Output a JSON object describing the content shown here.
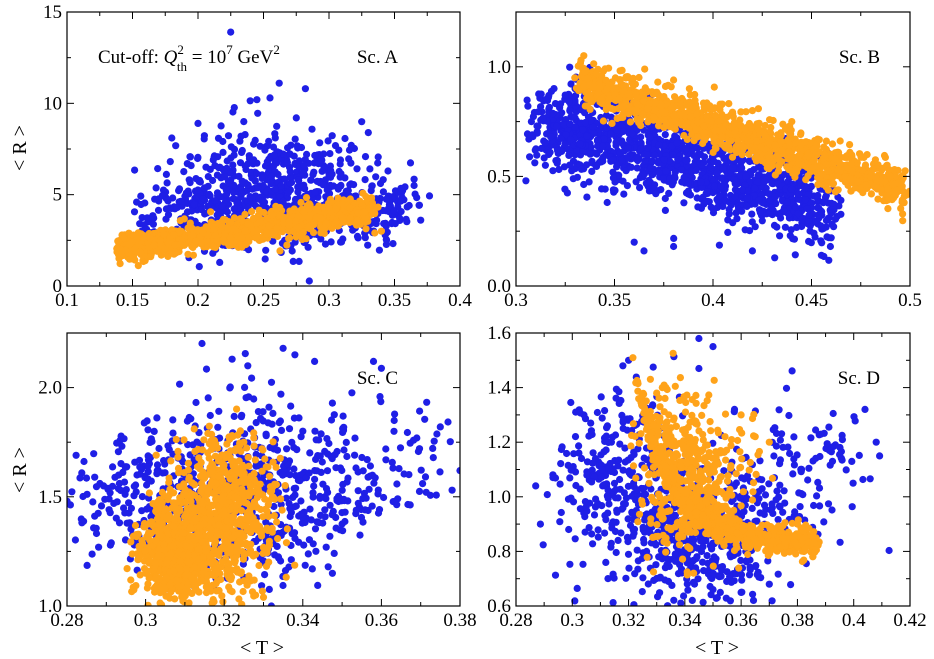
{
  "figure": {
    "y_axis_title": "< R >",
    "x_axis_title": "< T >"
  },
  "colors": {
    "series_a": "#1f1fe6",
    "series_b": "#ffa31a",
    "axis": "#000000"
  },
  "chart_data": [
    {
      "type": "scatter",
      "panel": "Sc. A",
      "annotation": "Sc. A",
      "cutoff_label": {
        "prefix": "Cut-off: ",
        "q": "Q",
        "q_sup": "2",
        "q_sub": "th",
        "eq": " = 10",
        "exp": "7",
        "unit": " GeV",
        "unit_sup": "2"
      },
      "xlim": [
        0.1,
        0.4
      ],
      "ylim": [
        0,
        15
      ],
      "xticks": [
        "0.1",
        "0.15",
        "0.2",
        "0.25",
        "0.3",
        "0.35",
        "0.4"
      ],
      "yticks": [
        "0",
        "5",
        "10",
        "15"
      ],
      "xlabel": "",
      "ylabel": "< R >",
      "series": [
        {
          "name": "blue",
          "color": "#1f1fe6",
          "cloud": [
            [
              0.16,
              3.0,
              0.006,
              0.5
            ],
            [
              0.2,
              4.2,
              0.02,
              1.1
            ],
            [
              0.23,
              5.2,
              0.025,
              1.6
            ],
            [
              0.26,
              5.0,
              0.03,
              1.7
            ],
            [
              0.29,
              5.2,
              0.025,
              1.5
            ],
            [
              0.32,
              4.6,
              0.02,
              1.2
            ],
            [
              0.35,
              4.2,
              0.012,
              0.8
            ]
          ],
          "cloud_counts": [
            30,
            130,
            190,
            200,
            170,
            110,
            45
          ],
          "points": [
            [
              0.225,
              13.9
            ],
            [
              0.255,
              10.3
            ],
            [
              0.262,
              11.1
            ],
            [
              0.282,
              10.8
            ],
            [
              0.245,
              10.2
            ],
            [
              0.2,
              8.9
            ],
            [
              0.18,
              8.1
            ],
            [
              0.275,
              9.2
            ],
            [
              0.235,
              9.0
            ],
            [
              0.33,
              8.4
            ],
            [
              0.365,
              5.5
            ],
            [
              0.37,
              3.6
            ]
          ]
        },
        {
          "name": "orange",
          "color": "#ffa31a",
          "band": {
            "x0": 0.14,
            "x1": 0.335,
            "y_at_x0": 2.0,
            "slope": 11.5,
            "spread_x": 0.002,
            "spread_y": 0.38,
            "count": 1100
          },
          "points": [
            [
              0.138,
              2.05
            ],
            [
              0.145,
              1.95
            ],
            [
              0.285,
              4.5
            ],
            [
              0.3,
              4.3
            ],
            [
              0.335,
              2.9
            ],
            [
              0.34,
              3.0
            ]
          ]
        }
      ]
    },
    {
      "type": "scatter",
      "panel": "Sc. B",
      "annotation": "Sc. B",
      "xlim": [
        0.3,
        0.5
      ],
      "ylim": [
        0.0,
        1.25
      ],
      "xticks": [
        "0.3",
        "0.35",
        "0.4",
        "0.45",
        "0.5"
      ],
      "yticks": [
        "0.0",
        "0.5",
        "1.0"
      ],
      "xlabel": "",
      "ylabel": "",
      "series": [
        {
          "name": "blue",
          "color": "#1f1fe6",
          "band": {
            "x0": 0.31,
            "x1": 0.46,
            "y_at_x0": 0.75,
            "slope": -2.5,
            "spread_x": 0.004,
            "spread_y": 0.1,
            "count": 1300
          },
          "points": [
            [
              0.305,
              0.48
            ],
            [
              0.33,
              0.9
            ],
            [
              0.34,
              0.95
            ],
            [
              0.36,
              0.2
            ],
            [
              0.365,
              0.16
            ],
            [
              0.38,
              0.18
            ],
            [
              0.42,
              0.16
            ],
            [
              0.455,
              0.14
            ],
            [
              0.46,
              0.22
            ],
            [
              0.43,
              0.6
            ]
          ]
        },
        {
          "name": "orange",
          "color": "#ffa31a",
          "band": {
            "x0": 0.333,
            "x1": 0.497,
            "y_at_x0": 0.93,
            "slope": -3.0,
            "spread_x": 0.002,
            "spread_y": 0.05,
            "count": 1300
          },
          "points": [
            [
              0.333,
              1.03
            ],
            [
              0.372,
              0.93
            ],
            [
              0.38,
              0.94
            ],
            [
              0.388,
              0.9
            ],
            [
              0.42,
              0.8
            ],
            [
              0.44,
              0.75
            ],
            [
              0.48,
              0.5
            ],
            [
              0.497,
              0.38
            ]
          ]
        }
      ]
    },
    {
      "type": "scatter",
      "panel": "Sc. C",
      "annotation": "Sc. C",
      "xlim": [
        0.28,
        0.38
      ],
      "ylim": [
        1.0,
        2.25
      ],
      "xticks": [
        "0.28",
        "0.3",
        "0.32",
        "0.34",
        "0.36",
        "0.38"
      ],
      "yticks": [
        "1.0",
        "1.5",
        "2.0"
      ],
      "xlabel": "< T >",
      "ylabel": "< R >",
      "series": [
        {
          "name": "blue",
          "color": "#1f1fe6",
          "cloud": [
            [
              0.29,
              1.5,
              0.006,
              0.12
            ],
            [
              0.305,
              1.45,
              0.007,
              0.18
            ],
            [
              0.318,
              1.5,
              0.008,
              0.22
            ],
            [
              0.33,
              1.5,
              0.008,
              0.22
            ],
            [
              0.342,
              1.55,
              0.008,
              0.18
            ],
            [
              0.355,
              1.6,
              0.007,
              0.15
            ],
            [
              0.37,
              1.65,
              0.005,
              0.12
            ]
          ],
          "cloud_counts": [
            70,
            160,
            200,
            180,
            120,
            70,
            25
          ],
          "points": [
            [
              0.335,
              2.18
            ],
            [
              0.338,
              2.15
            ],
            [
              0.322,
              2.13
            ],
            [
              0.326,
              2.1
            ],
            [
              0.343,
              2.12
            ],
            [
              0.358,
              2.12
            ],
            [
              0.375,
              1.82
            ],
            [
              0.378,
              1.53
            ],
            [
              0.38,
              1.62
            ],
            [
              0.28,
              1.48
            ],
            [
              0.332,
              1.0
            ]
          ]
        },
        {
          "name": "orange",
          "color": "#ffa31a",
          "cloud": [
            [
              0.306,
              1.2,
              0.004,
              0.08
            ],
            [
              0.31,
              1.33,
              0.006,
              0.12
            ],
            [
              0.314,
              1.22,
              0.007,
              0.1
            ],
            [
              0.318,
              1.45,
              0.006,
              0.15
            ],
            [
              0.322,
              1.6,
              0.005,
              0.12
            ],
            [
              0.326,
              1.4,
              0.005,
              0.12
            ]
          ],
          "cloud_counts": [
            260,
            330,
            230,
            210,
            130,
            100
          ],
          "points": [
            [
              0.322,
              1.78
            ],
            [
              0.325,
              1.75
            ],
            [
              0.33,
              1.04
            ],
            [
              0.328,
              1.05
            ]
          ]
        }
      ]
    },
    {
      "type": "scatter",
      "panel": "Sc. D",
      "annotation": "Sc. D",
      "xlim": [
        0.28,
        0.42
      ],
      "ylim": [
        0.6,
        1.6
      ],
      "xticks": [
        "0.28",
        "0.3",
        "0.32",
        "0.34",
        "0.36",
        "0.38",
        "0.4",
        "0.42"
      ],
      "yticks": [
        "0.6",
        "0.8",
        "1.0",
        "1.2",
        "1.4",
        "1.6"
      ],
      "xlabel": "< T >",
      "ylabel": "",
      "series": [
        {
          "name": "blue",
          "color": "#1f1fe6",
          "cloud": [
            [
              0.305,
              1.05,
              0.008,
              0.15
            ],
            [
              0.32,
              1.0,
              0.008,
              0.2
            ],
            [
              0.335,
              0.92,
              0.008,
              0.16
            ],
            [
              0.345,
              0.85,
              0.008,
              0.1
            ],
            [
              0.358,
              0.88,
              0.009,
              0.14
            ],
            [
              0.375,
              1.05,
              0.01,
              0.16
            ],
            [
              0.395,
              1.1,
              0.007,
              0.1
            ]
          ],
          "cloud_counts": [
            90,
            190,
            200,
            160,
            150,
            90,
            30
          ],
          "points": [
            [
              0.345,
              1.58
            ],
            [
              0.35,
              1.55
            ],
            [
              0.318,
              1.48
            ],
            [
              0.32,
              1.5
            ],
            [
              0.345,
              1.47
            ],
            [
              0.287,
              1.04
            ],
            [
              0.408,
              1.2
            ],
            [
              0.404,
              1.32
            ],
            [
              0.37,
              0.68
            ],
            [
              0.36,
              0.65
            ],
            [
              0.35,
              0.66
            ]
          ]
        },
        {
          "name": "orange",
          "color": "#ffa31a",
          "arc": {
            "x_start": 0.326,
            "x_end": 0.386,
            "y_floor": 0.83,
            "amp": 0.47,
            "decay": 0.013,
            "spread_x": 0.002,
            "spread_y": 0.025,
            "count": 800
          },
          "cloud": [
            [
              0.335,
              1.1,
              0.006,
              0.15
            ],
            [
              0.345,
              1.05,
              0.006,
              0.12
            ],
            [
              0.355,
              1.05,
              0.006,
              0.12
            ]
          ],
          "cloud_counts": [
            230,
            150,
            70
          ],
          "points": [
            [
              0.332,
              1.4
            ],
            [
              0.33,
              1.38
            ],
            [
              0.36,
              1.3
            ],
            [
              0.365,
              1.22
            ],
            [
              0.37,
              1.2
            ],
            [
              0.38,
              0.9
            ],
            [
              0.386,
              0.83
            ]
          ]
        }
      ]
    }
  ]
}
